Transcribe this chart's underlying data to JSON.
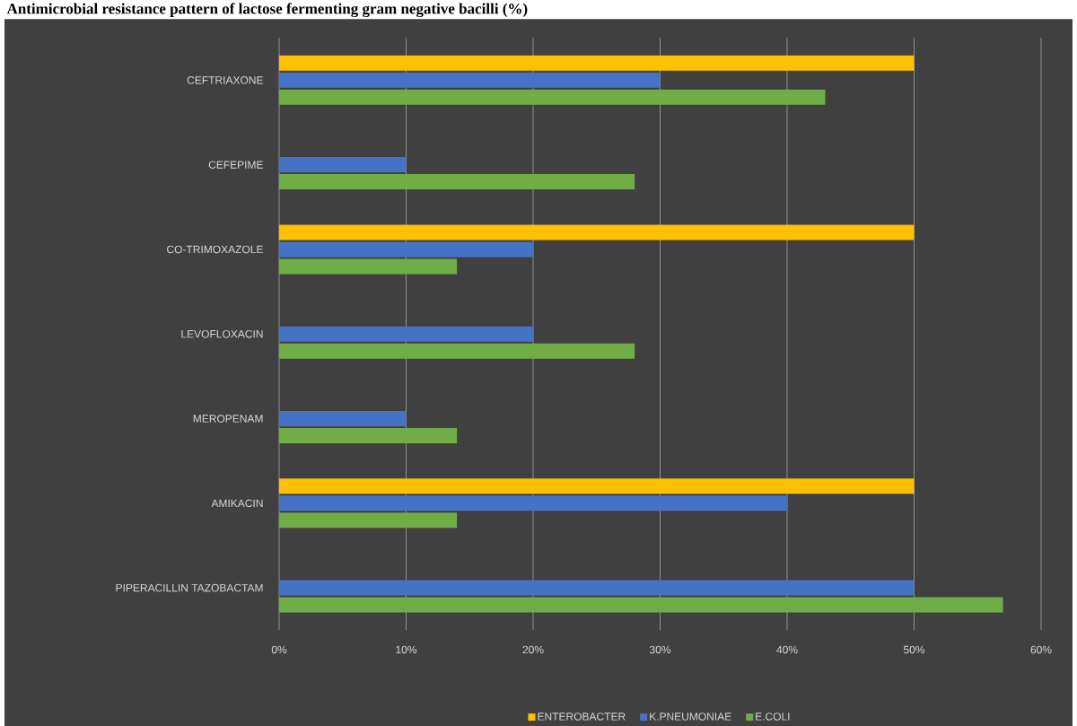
{
  "chart_data": {
    "type": "bar",
    "orientation": "horizontal",
    "title": "Antimicrobial resistance pattern of lactose fermenting gram negative bacilli (%)",
    "categories": [
      "CEFTRIAXONE",
      "CEFEPIME",
      "CO-TRIMOXAZOLE",
      "LEVOFLOXACIN",
      "MEROPENAM",
      "AMIKACIN",
      "PIPERACILLIN TAZOBACTAM"
    ],
    "series": [
      {
        "name": "ENTEROBACTER",
        "color": "#ffc000",
        "values": [
          50,
          0,
          50,
          0,
          0,
          50,
          0
        ]
      },
      {
        "name": "K.PNEUMONIAE",
        "color": "#4472c4",
        "values": [
          30,
          10,
          20,
          20,
          10,
          40,
          50
        ]
      },
      {
        "name": "E.COLI",
        "color": "#70ad47",
        "values": [
          43,
          28,
          14,
          28,
          14,
          14,
          57
        ]
      }
    ],
    "xlim": [
      0,
      60
    ],
    "xticks": [
      {
        "value": 0,
        "label": "0%"
      },
      {
        "value": 10,
        "label": "10%"
      },
      {
        "value": 20,
        "label": "20%"
      },
      {
        "value": 30,
        "label": "30%"
      },
      {
        "value": 40,
        "label": "40%"
      },
      {
        "value": 50,
        "label": "50%"
      },
      {
        "value": 60,
        "label": "60%"
      }
    ],
    "grid": "x",
    "legend": "bottom"
  }
}
